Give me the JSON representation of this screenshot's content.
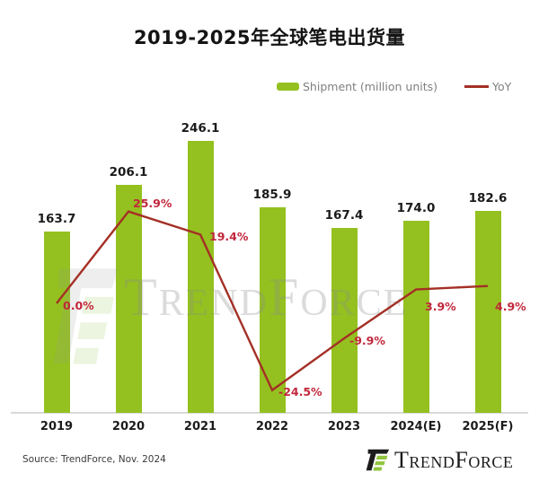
{
  "title": "2019-2025年全球笔电出货量",
  "legend": {
    "shipment_label": "Shipment (million units)",
    "yoy_label": "YoY"
  },
  "chart_data": {
    "type": "bar",
    "title": "2019-2025年全球笔电出货量",
    "categories": [
      "2019",
      "2020",
      "2021",
      "2022",
      "2023",
      "2024(E)",
      "2025(F)"
    ],
    "series": [
      {
        "name": "Shipment (million units)",
        "type": "bar",
        "values": [
          163.7,
          206.1,
          246.1,
          185.9,
          167.4,
          174.0,
          182.6
        ]
      },
      {
        "name": "YoY",
        "type": "line",
        "values": [
          0.0,
          25.9,
          19.4,
          -24.5,
          -9.9,
          3.9,
          4.9
        ]
      }
    ],
    "bar_labels": [
      "163.7",
      "206.1",
      "246.1",
      "185.9",
      "167.4",
      "174.0",
      "182.6"
    ],
    "yoy_labels": [
      "0.0%",
      "25.9%",
      "19.4%",
      "-24.5%",
      "-9.9%",
      "3.9%",
      "4.9%"
    ],
    "xlabel": "",
    "ylabel": "",
    "grid": false,
    "legend_position": "top",
    "colors": {
      "bar": "#94c11f",
      "line": "#a43026",
      "pct_label": "#c1273b"
    }
  },
  "watermark": {
    "text": "TrendForce"
  },
  "footer": {
    "source": "Source: TrendForce, Nov. 2024",
    "logo_text": "TrendForce"
  }
}
